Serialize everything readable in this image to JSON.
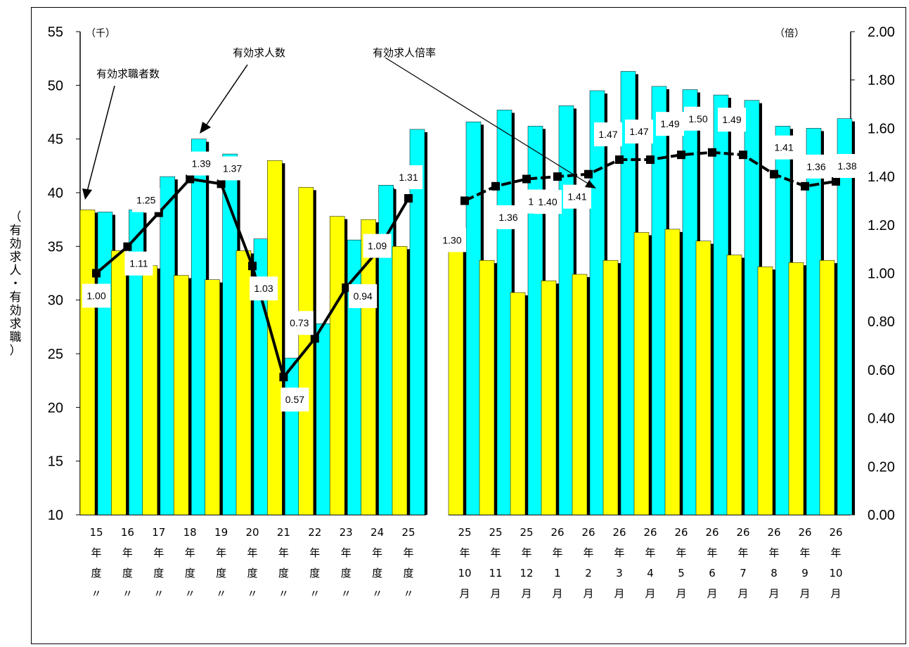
{
  "chart_data": {
    "type": "bar",
    "ylabel_left_chars": [
      "（",
      "有",
      "効",
      "求",
      "人",
      "・",
      "有",
      "効",
      "求",
      "職",
      "）"
    ],
    "left_unit": "（千）",
    "right_unit": "（倍）",
    "left_axis": {
      "ylim": [
        10,
        55
      ],
      "ticks": [
        "10",
        "15",
        "20",
        "25",
        "30",
        "35",
        "40",
        "45",
        "50",
        "55"
      ]
    },
    "right_axis": {
      "ylim": [
        0,
        2.0
      ],
      "ticks": [
        "0.00",
        "0.20",
        "0.40",
        "0.60",
        "0.80",
        "1.00",
        "1.20",
        "1.40",
        "1.60",
        "1.80",
        "2.00"
      ]
    },
    "categories": [
      [
        "15",
        "年",
        "度",
        "〃"
      ],
      [
        "16",
        "年",
        "度",
        "〃"
      ],
      [
        "17",
        "年",
        "度",
        "〃"
      ],
      [
        "18",
        "年",
        "度",
        "〃"
      ],
      [
        "19",
        "年",
        "度",
        "〃"
      ],
      [
        "20",
        "年",
        "度",
        "〃"
      ],
      [
        "21",
        "年",
        "度",
        "〃"
      ],
      [
        "22",
        "年",
        "度",
        "〃"
      ],
      [
        "23",
        "年",
        "度",
        "〃"
      ],
      [
        "24",
        "年",
        "度",
        "〃"
      ],
      [
        "25",
        "年",
        "度",
        "〃"
      ],
      [
        "25",
        "年",
        "10",
        "月"
      ],
      [
        "25",
        "年",
        "11",
        "月"
      ],
      [
        "25",
        "年",
        "12",
        "月"
      ],
      [
        "26",
        "年",
        "1",
        "月"
      ],
      [
        "26",
        "年",
        "2",
        "月"
      ],
      [
        "26",
        "年",
        "3",
        "月"
      ],
      [
        "26",
        "年",
        "4",
        "月"
      ],
      [
        "26",
        "年",
        "5",
        "月"
      ],
      [
        "26",
        "年",
        "6",
        "月"
      ],
      [
        "26",
        "年",
        "7",
        "月"
      ],
      [
        "26",
        "年",
        "8",
        "月"
      ],
      [
        "26",
        "年",
        "9",
        "月"
      ],
      [
        "26",
        "年",
        "10",
        "月"
      ]
    ],
    "series": [
      {
        "name": "有効求職者数",
        "color": "#ffff00",
        "axis": "left",
        "values": [
          38.4,
          34.6,
          33.2,
          32.3,
          31.9,
          34.6,
          43.0,
          40.5,
          37.8,
          37.5,
          35.0,
          36.0,
          33.7,
          30.7,
          31.8,
          32.4,
          33.7,
          36.3,
          36.6,
          35.5,
          34.2,
          33.1,
          33.5,
          33.7
        ]
      },
      {
        "name": "有効求人数",
        "color": "#00ffff",
        "axis": "left",
        "values": [
          38.2,
          38.4,
          41.5,
          45.0,
          43.6,
          35.7,
          24.6,
          27.8,
          35.6,
          40.7,
          45.9,
          46.6,
          47.7,
          46.2,
          48.1,
          49.5,
          51.3,
          49.9,
          49.6,
          49.1,
          48.6,
          46.2,
          46.0,
          46.9
        ]
      },
      {
        "name": "有効求人倍率",
        "color": "#000000",
        "axis": "right",
        "type": "line",
        "values": [
          1.0,
          1.11,
          1.25,
          1.39,
          1.37,
          1.03,
          0.57,
          0.73,
          0.94,
          1.09,
          1.31,
          1.3,
          1.36,
          1.39,
          1.4,
          1.41,
          1.47,
          1.47,
          1.49,
          1.5,
          1.49,
          1.41,
          1.36,
          1.38
        ],
        "labels": [
          "1.00",
          "1.11",
          "1.25",
          "1.39",
          "1.37",
          "1.03",
          "0.57",
          "0.73",
          "0.94",
          "1.09",
          "1.31",
          "1.30",
          "1.36",
          "1.39",
          "1.40",
          "1.41",
          "1.47",
          "1.47",
          "1.49",
          "1.50",
          "1.49",
          "1.41",
          "1.36",
          "1.38"
        ]
      }
    ],
    "annotations": [
      {
        "text": "有効求職者数",
        "points_to_series": "有効求職者数"
      },
      {
        "text": "有効求人数",
        "points_to_series": "有効求人数"
      },
      {
        "text": "有効求人倍率",
        "points_to_series": "有効求人倍率"
      }
    ],
    "grid": false
  }
}
